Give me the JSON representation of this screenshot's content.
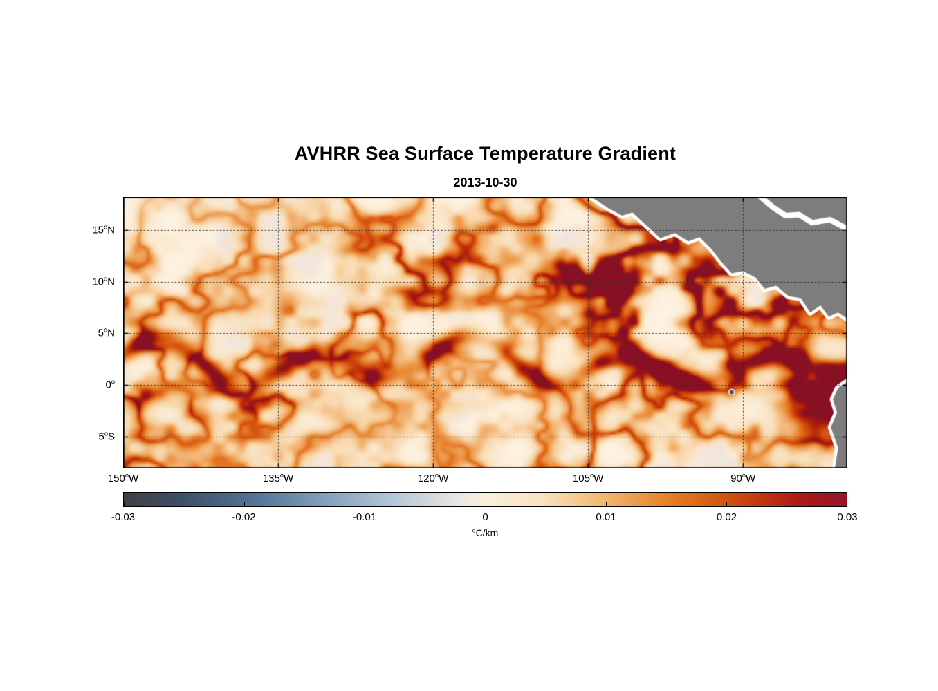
{
  "chart_data": {
    "type": "heatmap",
    "title": "AVHRR Sea Surface Temperature Gradient",
    "subtitle": "2013-10-30",
    "x_axis": {
      "tick_labels": [
        "150°W",
        "135°W",
        "120°W",
        "105°W",
        "90°W"
      ],
      "tick_lons": [
        -150,
        -135,
        -120,
        -105,
        -90
      ],
      "lon_range": [
        -150,
        -79.9
      ]
    },
    "y_axis": {
      "tick_labels": [
        "15°N",
        "10°N",
        "5°N",
        "0°",
        "5°S"
      ],
      "tick_lats": [
        15,
        10,
        5,
        0,
        -5
      ],
      "lat_range": [
        18.2,
        -8.1
      ]
    },
    "grid": "dotted",
    "legend": "none",
    "colorbar": {
      "tick_labels": [
        "-0.03",
        "-0.02",
        "-0.01",
        "0",
        "0.01",
        "0.02",
        "0.03"
      ],
      "tick_values": [
        -0.03,
        -0.02,
        -0.01,
        0,
        0.01,
        0.02,
        0.03
      ],
      "range": [
        -0.03,
        0.03
      ],
      "units": "°C/km",
      "orientation": "horizontal",
      "gradient_stops": [
        {
          "pos": 0.0,
          "color": "#3f4045"
        },
        {
          "pos": 0.08,
          "color": "#3f4f66"
        },
        {
          "pos": 0.17,
          "color": "#4f6f93"
        },
        {
          "pos": 0.27,
          "color": "#7e9cba"
        },
        {
          "pos": 0.37,
          "color": "#b3c5d6"
        },
        {
          "pos": 0.46,
          "color": "#e8e6e3"
        },
        {
          "pos": 0.5,
          "color": "#f9efdd"
        },
        {
          "pos": 0.58,
          "color": "#f9e2bd"
        },
        {
          "pos": 0.67,
          "color": "#f2b469"
        },
        {
          "pos": 0.76,
          "color": "#e57c22"
        },
        {
          "pos": 0.85,
          "color": "#cc4a0e"
        },
        {
          "pos": 0.93,
          "color": "#ad1c15"
        },
        {
          "pos": 1.0,
          "color": "#92162b"
        }
      ]
    },
    "style": {
      "seed": 20131030,
      "axis_color": "#000000",
      "grid_color": "#2e2e2e",
      "land_color": "#7d7d7d",
      "coast_halo": "#ffffff",
      "heatmap_stops": [
        {
          "pos": 0.0,
          "color": "#fdf2e1"
        },
        {
          "pos": 0.12,
          "color": "#fbe9cf"
        },
        {
          "pos": 0.28,
          "color": "#f8d6a9"
        },
        {
          "pos": 0.44,
          "color": "#f2b271"
        },
        {
          "pos": 0.58,
          "color": "#e98d3a"
        },
        {
          "pos": 0.72,
          "color": "#db5c12"
        },
        {
          "pos": 0.84,
          "color": "#c03208"
        },
        {
          "pos": 0.93,
          "color": "#a01613"
        },
        {
          "pos": 1.0,
          "color": "#871024"
        }
      ],
      "equatorial_front": {
        "center_lat": 2.1,
        "meander_amp_deg": 1.7,
        "width_deg": 1.15
      },
      "east_hotspot": {
        "lon": -81.5,
        "lat": -2.4,
        "strength": 1.05
      }
    },
    "geography": {
      "central_america": [
        [
          -104.7,
          18.2
        ],
        [
          -103.0,
          17.1
        ],
        [
          -101.7,
          16.4
        ],
        [
          -100.7,
          16.7
        ],
        [
          -99.1,
          15.2
        ],
        [
          -98.0,
          14.2
        ],
        [
          -96.6,
          14.7
        ],
        [
          -95.3,
          13.9
        ],
        [
          -94.2,
          14.3
        ],
        [
          -93.0,
          13.1
        ],
        [
          -92.0,
          11.8
        ],
        [
          -91.1,
          10.8
        ],
        [
          -90.0,
          11.0
        ],
        [
          -88.8,
          10.4
        ],
        [
          -87.9,
          9.3
        ],
        [
          -86.8,
          9.6
        ],
        [
          -85.6,
          8.6
        ],
        [
          -84.4,
          8.4
        ],
        [
          -83.5,
          7.0
        ],
        [
          -82.5,
          7.7
        ],
        [
          -81.7,
          6.6
        ],
        [
          -80.8,
          7.0
        ],
        [
          -79.9,
          6.4
        ],
        [
          -79.9,
          18.2
        ]
      ],
      "caribbean_inlet": [
        [
          -88.3,
          18.2
        ],
        [
          -87.1,
          17.2
        ],
        [
          -85.9,
          16.4
        ],
        [
          -84.6,
          16.5
        ],
        [
          -83.3,
          15.7
        ],
        [
          -81.6,
          16.0
        ],
        [
          -79.9,
          15.1
        ]
      ],
      "south_america": [
        [
          -79.9,
          0.3
        ],
        [
          -80.8,
          -0.3
        ],
        [
          -81.3,
          -1.4
        ],
        [
          -80.9,
          -2.7
        ],
        [
          -81.5,
          -4.1
        ],
        [
          -80.8,
          -6.1
        ],
        [
          -81.1,
          -8.1
        ],
        [
          -79.9,
          -8.1
        ]
      ],
      "galapagos": {
        "lon": -91.1,
        "lat": -0.7,
        "color": "#50505c"
      }
    }
  }
}
